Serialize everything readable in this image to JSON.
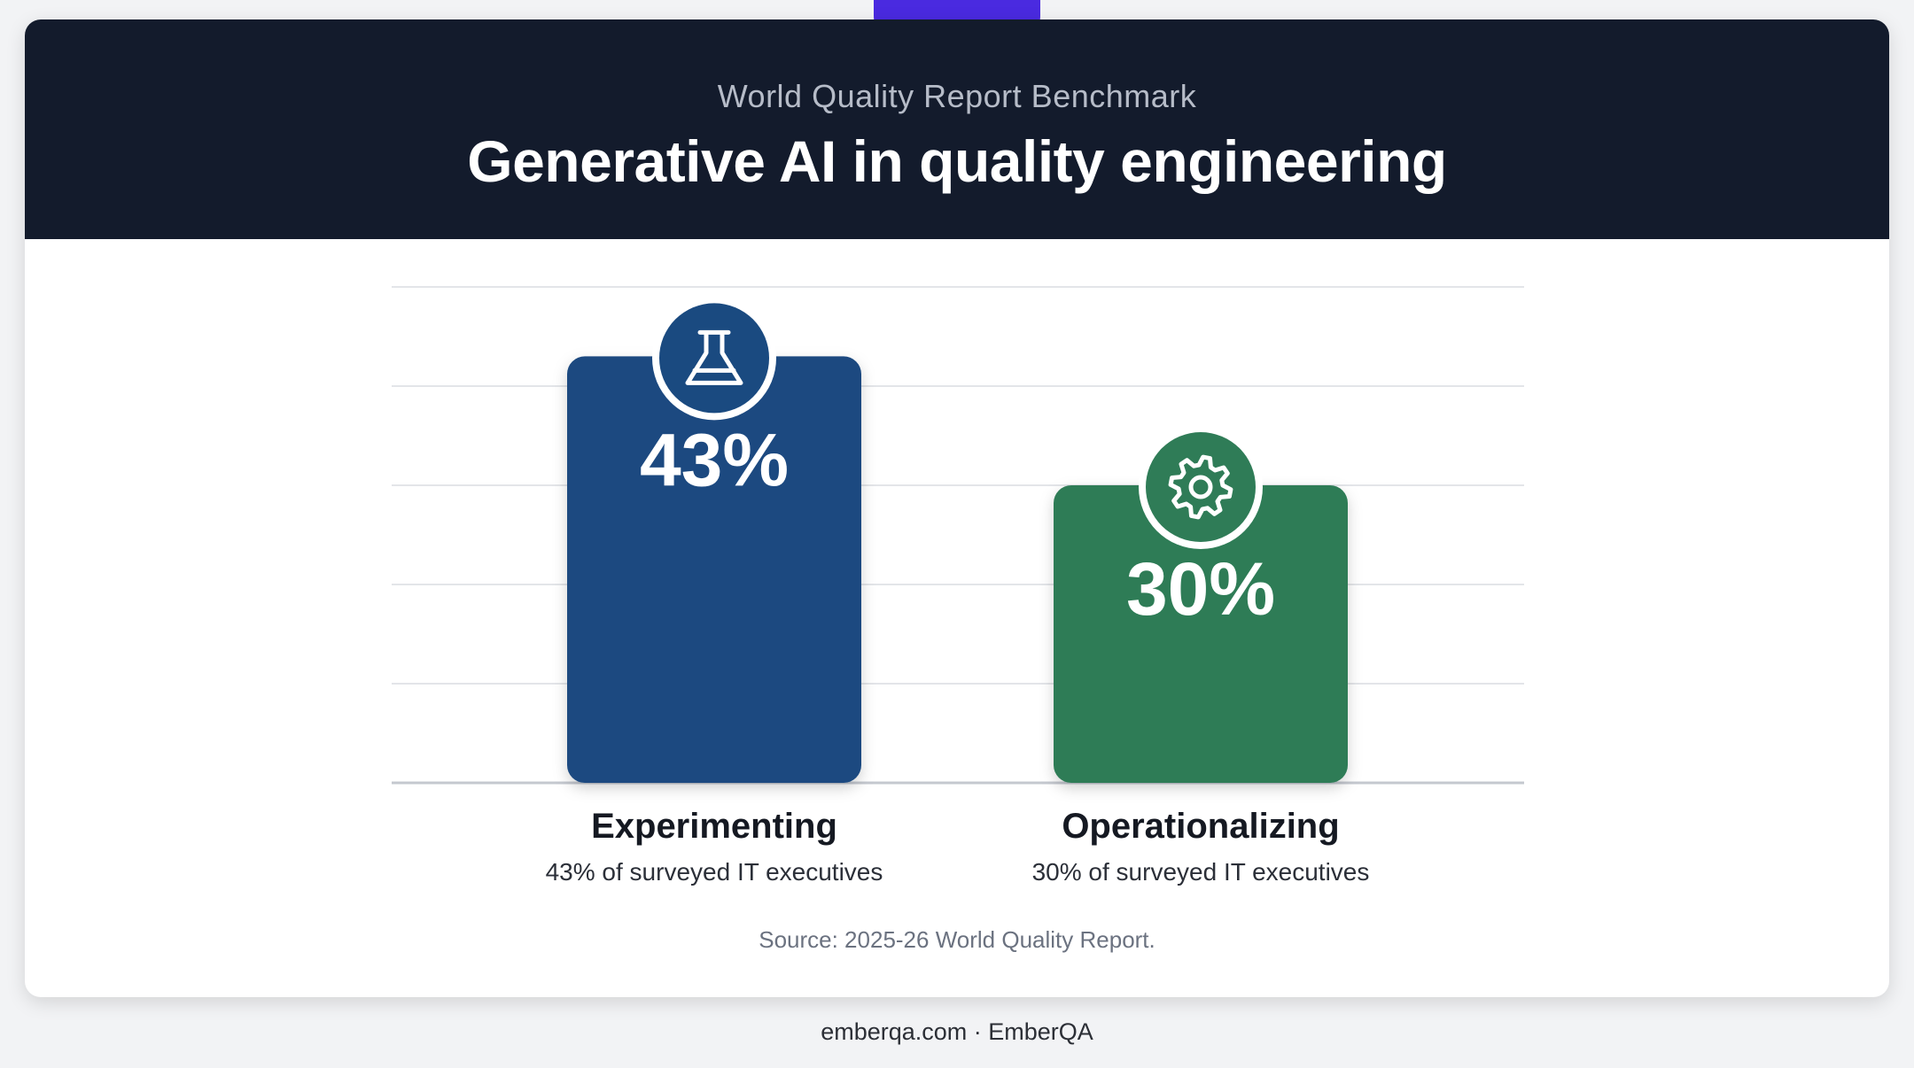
{
  "header": {
    "kicker": "World Quality Report Benchmark",
    "title": "Generative AI in quality engineering"
  },
  "chart_data": {
    "type": "bar",
    "categories": [
      "Experimenting",
      "Operationalizing"
    ],
    "values": [
      43,
      30
    ],
    "value_labels": [
      "43%",
      "30%"
    ],
    "descriptions": [
      "43% of surveyed IT executives",
      "30% of surveyed IT executives"
    ],
    "icons": [
      "flask-icon",
      "gear-icon"
    ],
    "colors": [
      "#1a4a80",
      "#2f7c57"
    ],
    "ylim": [
      0,
      50
    ],
    "grid": true
  },
  "source": "Source: 2025-26 World Quality Report.",
  "footer": "emberqa.com · EmberQA",
  "colors": {
    "header_bg": "#131b2c",
    "accent_tab": "#4a2ae0",
    "page_bg": "#f2f3f5"
  }
}
